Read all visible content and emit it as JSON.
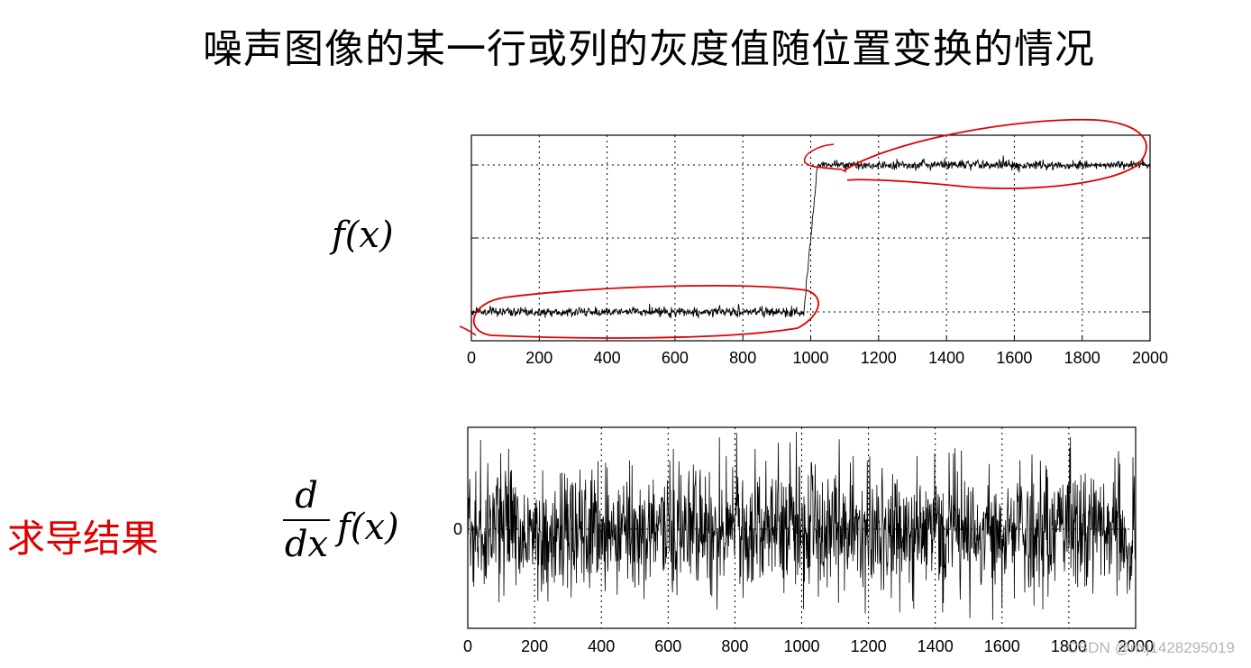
{
  "title": "噪声图像的某一行或列的灰度值随位置变换的情况",
  "label_fx": "f(x)",
  "label_derivative": {
    "num": "d",
    "den": "dx",
    "fx": "f(x)"
  },
  "red_label": "求导结果",
  "watermark": "CSDN @nxj1428295019",
  "colors": {
    "annotation": "#e00000",
    "line": "#000000",
    "grid": "#000000"
  },
  "chart_data": [
    {
      "type": "line",
      "x_range": [
        0,
        2000
      ],
      "xticks": [
        0,
        200,
        400,
        600,
        800,
        1000,
        1200,
        1400,
        1600,
        1800,
        2000
      ],
      "grid": true,
      "series": [
        {
          "values": [
            {
              "x": 0,
              "y": 0
            },
            {
              "x": 980,
              "y": 0
            },
            {
              "x": 1020,
              "y": 1
            },
            {
              "x": 2000,
              "y": 1
            }
          ],
          "noise": true
        }
      ],
      "annotations": [
        "ellipse-low-level",
        "ellipse-high-level"
      ]
    },
    {
      "type": "line",
      "x_range": [
        0,
        2000
      ],
      "xticks": [
        0,
        200,
        400,
        600,
        800,
        1000,
        1200,
        1400,
        1600,
        1800,
        2000
      ],
      "yticks": [
        0
      ],
      "grid": true,
      "series": [
        {
          "description_level": 0,
          "noise": true
        }
      ]
    }
  ]
}
